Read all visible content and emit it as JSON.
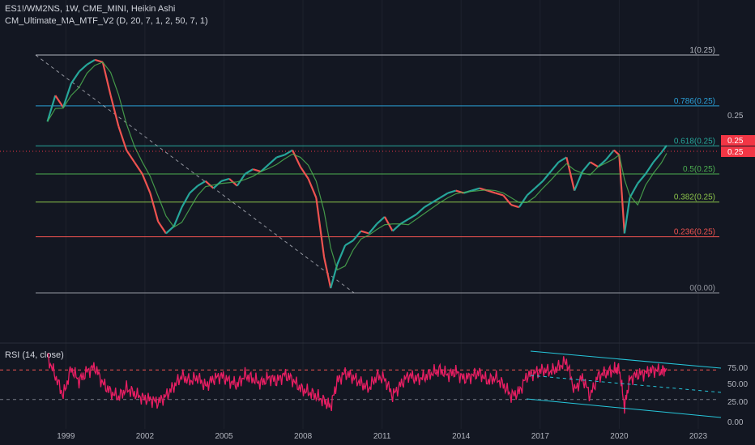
{
  "legend": {
    "symbol_line": "ES1!/WM2NS, 1W, CME_MINI, Heikin Ashi",
    "indicator_line": "CM_Ultimate_MA_MTF_V2 (D, 20, 7, 1, 2, 50, 7, 1)"
  },
  "rsi": {
    "label": "RSI (14, close)",
    "ticks": [
      "75.00",
      "50.00",
      "25.00",
      "0.00"
    ]
  },
  "price_axis": {
    "tick": "0.25",
    "tags": [
      "0.25",
      "0.25"
    ]
  },
  "colors": {
    "background": "#131722",
    "up": "#26a69a",
    "down": "#ef5350",
    "ma": "#4caf50",
    "rsi": "#e91e63",
    "channel": "#26c6da",
    "last_price": "#f23645"
  },
  "chart_data": {
    "type": "line",
    "x_ticks": [
      "1999",
      "2002",
      "2005",
      "2008",
      "2011",
      "2014",
      "2017",
      "2020",
      "2023"
    ],
    "fib_levels": [
      {
        "label": "1(0.25)",
        "value": 1,
        "color": "#b2b5be"
      },
      {
        "label": "0.786(0.25)",
        "value": 0.786,
        "color": "#2a9fd6"
      },
      {
        "label": "0.618(0.25)",
        "value": 0.618,
        "color": "#26a69a"
      },
      {
        "label": "0.5(0.25)",
        "value": 0.5,
        "color": "#4caf50"
      },
      {
        "label": "0.382(0.25)",
        "value": 0.382,
        "color": "#8bc34a"
      },
      {
        "label": "0.236(0.25)",
        "value": 0.236,
        "color": "#ef5350"
      },
      {
        "label": "0(0.00)",
        "value": 0,
        "color": "#9598a1"
      }
    ],
    "price_series": {
      "years": [
        1998.3,
        1998.6,
        1998.9,
        1999.2,
        1999.5,
        1999.8,
        2000.1,
        2000.4,
        2000.7,
        2001.0,
        2001.3,
        2001.6,
        2001.9,
        2002.2,
        2002.5,
        2002.8,
        2003.1,
        2003.4,
        2003.7,
        2004.0,
        2004.3,
        2004.6,
        2004.9,
        2005.2,
        2005.5,
        2005.8,
        2006.1,
        2006.4,
        2006.7,
        2007.0,
        2007.3,
        2007.6,
        2007.9,
        2008.2,
        2008.5,
        2008.8,
        2009.05,
        2009.3,
        2009.6,
        2009.9,
        2010.2,
        2010.5,
        2010.8,
        2011.1,
        2011.4,
        2011.7,
        2012.0,
        2012.3,
        2012.6,
        2012.9,
        2013.2,
        2013.5,
        2013.8,
        2014.1,
        2014.4,
        2014.7,
        2015.0,
        2015.3,
        2015.6,
        2015.9,
        2016.2,
        2016.5,
        2016.8,
        2017.1,
        2017.4,
        2017.7,
        2018.0,
        2018.3,
        2018.6,
        2018.9,
        2019.2,
        2019.5,
        2019.8,
        2020.0,
        2020.2,
        2020.4,
        2020.7,
        2021.0,
        2021.3,
        2021.6,
        2021.8
      ],
      "fib_ratio": [
        0.72,
        0.83,
        0.78,
        0.88,
        0.93,
        0.96,
        0.98,
        0.97,
        0.83,
        0.7,
        0.6,
        0.55,
        0.5,
        0.42,
        0.3,
        0.25,
        0.28,
        0.36,
        0.42,
        0.45,
        0.47,
        0.44,
        0.47,
        0.48,
        0.45,
        0.5,
        0.52,
        0.51,
        0.54,
        0.57,
        0.58,
        0.6,
        0.53,
        0.48,
        0.4,
        0.15,
        0.02,
        0.12,
        0.2,
        0.22,
        0.26,
        0.25,
        0.29,
        0.32,
        0.26,
        0.29,
        0.31,
        0.33,
        0.36,
        0.38,
        0.4,
        0.42,
        0.43,
        0.42,
        0.43,
        0.44,
        0.43,
        0.42,
        0.41,
        0.37,
        0.36,
        0.41,
        0.44,
        0.47,
        0.51,
        0.55,
        0.57,
        0.43,
        0.51,
        0.55,
        0.53,
        0.56,
        0.6,
        0.58,
        0.25,
        0.4,
        0.46,
        0.5,
        0.55,
        0.59,
        0.62
      ]
    },
    "rsi_series": {
      "years": [
        1998.3,
        1998.6,
        1998.9,
        1999.2,
        1999.5,
        1999.8,
        2000.1,
        2000.4,
        2000.7,
        2001.0,
        2001.3,
        2001.6,
        2001.9,
        2002.2,
        2002.5,
        2002.8,
        2003.1,
        2003.4,
        2003.7,
        2004.0,
        2004.3,
        2004.6,
        2004.9,
        2005.2,
        2005.5,
        2005.8,
        2006.1,
        2006.4,
        2006.7,
        2007.0,
        2007.3,
        2007.6,
        2007.9,
        2008.2,
        2008.5,
        2008.8,
        2009.05,
        2009.3,
        2009.6,
        2009.9,
        2010.2,
        2010.5,
        2010.8,
        2011.1,
        2011.4,
        2011.7,
        2012.0,
        2012.3,
        2012.6,
        2012.9,
        2013.2,
        2013.5,
        2013.8,
        2014.1,
        2014.4,
        2014.7,
        2015.0,
        2015.3,
        2015.6,
        2015.9,
        2016.2,
        2016.5,
        2016.8,
        2017.1,
        2017.4,
        2017.7,
        2018.0,
        2018.3,
        2018.6,
        2018.9,
        2019.2,
        2019.5,
        2019.8,
        2020.0,
        2020.2,
        2020.4,
        2020.7,
        2021.0,
        2021.3,
        2021.6,
        2021.8
      ],
      "values": [
        88,
        62,
        35,
        72,
        55,
        68,
        74,
        52,
        40,
        33,
        45,
        38,
        32,
        30,
        26,
        35,
        48,
        62,
        55,
        60,
        48,
        58,
        62,
        55,
        50,
        63,
        58,
        52,
        60,
        55,
        64,
        57,
        45,
        40,
        35,
        28,
        20,
        55,
        66,
        60,
        52,
        45,
        62,
        58,
        35,
        50,
        63,
        58,
        60,
        66,
        70,
        63,
        68,
        58,
        62,
        66,
        55,
        60,
        50,
        35,
        40,
        62,
        66,
        70,
        68,
        74,
        82,
        42,
        60,
        35,
        62,
        66,
        70,
        72,
        20,
        58,
        64,
        66,
        70,
        68,
        72
      ],
      "levels": [
        70,
        30
      ]
    },
    "x_range": [
      1996.5,
      2023.8
    ]
  }
}
